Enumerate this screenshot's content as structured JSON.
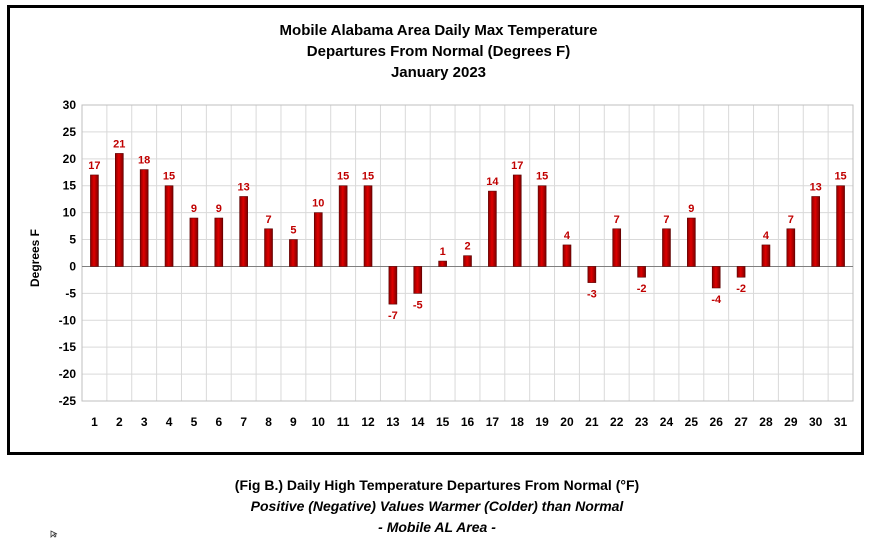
{
  "chart_data": {
    "type": "bar",
    "title_lines": [
      "Mobile Alabama Area Daily Max Temperature",
      "Departures From Normal (Degrees F)",
      "January 2023"
    ],
    "xlabel": "",
    "ylabel": "Degrees F",
    "ylim": [
      -25,
      30
    ],
    "yticks": [
      30,
      25,
      20,
      15,
      10,
      5,
      0,
      -5,
      -10,
      -15,
      -20,
      -25
    ],
    "categories": [
      "1",
      "2",
      "3",
      "4",
      "5",
      "6",
      "7",
      "8",
      "9",
      "10",
      "11",
      "12",
      "13",
      "14",
      "15",
      "16",
      "17",
      "18",
      "19",
      "20",
      "21",
      "22",
      "23",
      "24",
      "25",
      "26",
      "27",
      "28",
      "29",
      "30",
      "31"
    ],
    "values": [
      17,
      21,
      18,
      15,
      9,
      9,
      13,
      7,
      5,
      10,
      15,
      15,
      -7,
      -5,
      1,
      2,
      14,
      17,
      15,
      4,
      -3,
      7,
      -2,
      7,
      9,
      -4,
      -2,
      4,
      7,
      13,
      15
    ],
    "grid": true,
    "bar_color": "#c00000",
    "label_color": "#c00000"
  },
  "caption": {
    "line1": "(Fig B.) Daily High Temperature Departures From Normal (°F)",
    "line2": "Positive (Negative) Values Warmer (Colder) than Normal",
    "line3": "- Mobile AL Area -"
  }
}
